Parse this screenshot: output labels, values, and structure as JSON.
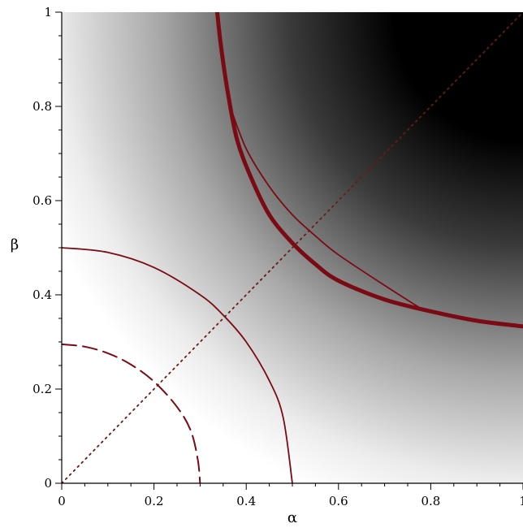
{
  "chart_data": {
    "type": "contour",
    "xlabel": "α",
    "ylabel": "β",
    "xlim": [
      0,
      1
    ],
    "ylim": [
      0,
      1
    ],
    "x_ticks": [
      "0",
      "0.2",
      "0.4",
      "0.6",
      "0.8",
      "1"
    ],
    "y_ticks": [
      "0",
      "0.2",
      "0.4",
      "0.6",
      "0.8",
      "1"
    ],
    "x_tick_values": [
      0,
      0.2,
      0.4,
      0.6,
      0.8,
      1
    ],
    "y_tick_values": [
      0,
      0.2,
      0.4,
      0.6,
      0.8,
      1
    ],
    "background": {
      "kind": "grayscale-shading",
      "from_color": "#ffffff",
      "to_color": "#000000",
      "direction": "dark toward upper-right (large α, large β)"
    },
    "colors": {
      "curve": "#7a0b14",
      "dotted": "#6b1a1a"
    },
    "series": [
      {
        "style": "dashed",
        "points": [
          [
            0,
            0.295
          ],
          [
            0.05,
            0.29
          ],
          [
            0.1,
            0.276
          ],
          [
            0.15,
            0.252
          ],
          [
            0.2,
            0.216
          ],
          [
            0.25,
            0.162
          ],
          [
            0.28,
            0.111
          ],
          [
            0.295,
            0.05
          ],
          [
            0.3,
            0
          ]
        ]
      },
      {
        "style": "solid-thin",
        "points": [
          [
            0,
            0.5
          ],
          [
            0.1,
            0.49
          ],
          [
            0.2,
            0.458
          ],
          [
            0.3,
            0.4
          ],
          [
            0.35,
            0.357
          ],
          [
            0.4,
            0.3
          ],
          [
            0.45,
            0.218
          ],
          [
            0.48,
            0.14
          ],
          [
            0.5,
            0
          ]
        ]
      },
      {
        "style": "solid-bold",
        "points": [
          [
            0.335,
            1.02
          ],
          [
            0.345,
            0.93
          ],
          [
            0.36,
            0.83
          ],
          [
            0.38,
            0.73
          ],
          [
            0.41,
            0.65
          ],
          [
            0.45,
            0.57
          ],
          [
            0.5,
            0.51
          ],
          [
            0.55,
            0.465
          ],
          [
            0.6,
            0.43
          ],
          [
            0.7,
            0.39
          ],
          [
            0.8,
            0.365
          ],
          [
            0.9,
            0.345
          ],
          [
            1.0,
            0.333
          ]
        ]
      },
      {
        "style": "solid-thin",
        "points": [
          [
            0.365,
            0.8
          ],
          [
            0.4,
            0.71
          ],
          [
            0.45,
            0.63
          ],
          [
            0.5,
            0.57
          ],
          [
            0.55,
            0.525
          ],
          [
            0.6,
            0.485
          ],
          [
            0.7,
            0.42
          ],
          [
            0.78,
            0.37
          ]
        ]
      },
      {
        "style": "dotted",
        "points": [
          [
            0,
            0
          ],
          [
            1,
            1
          ]
        ]
      }
    ]
  }
}
